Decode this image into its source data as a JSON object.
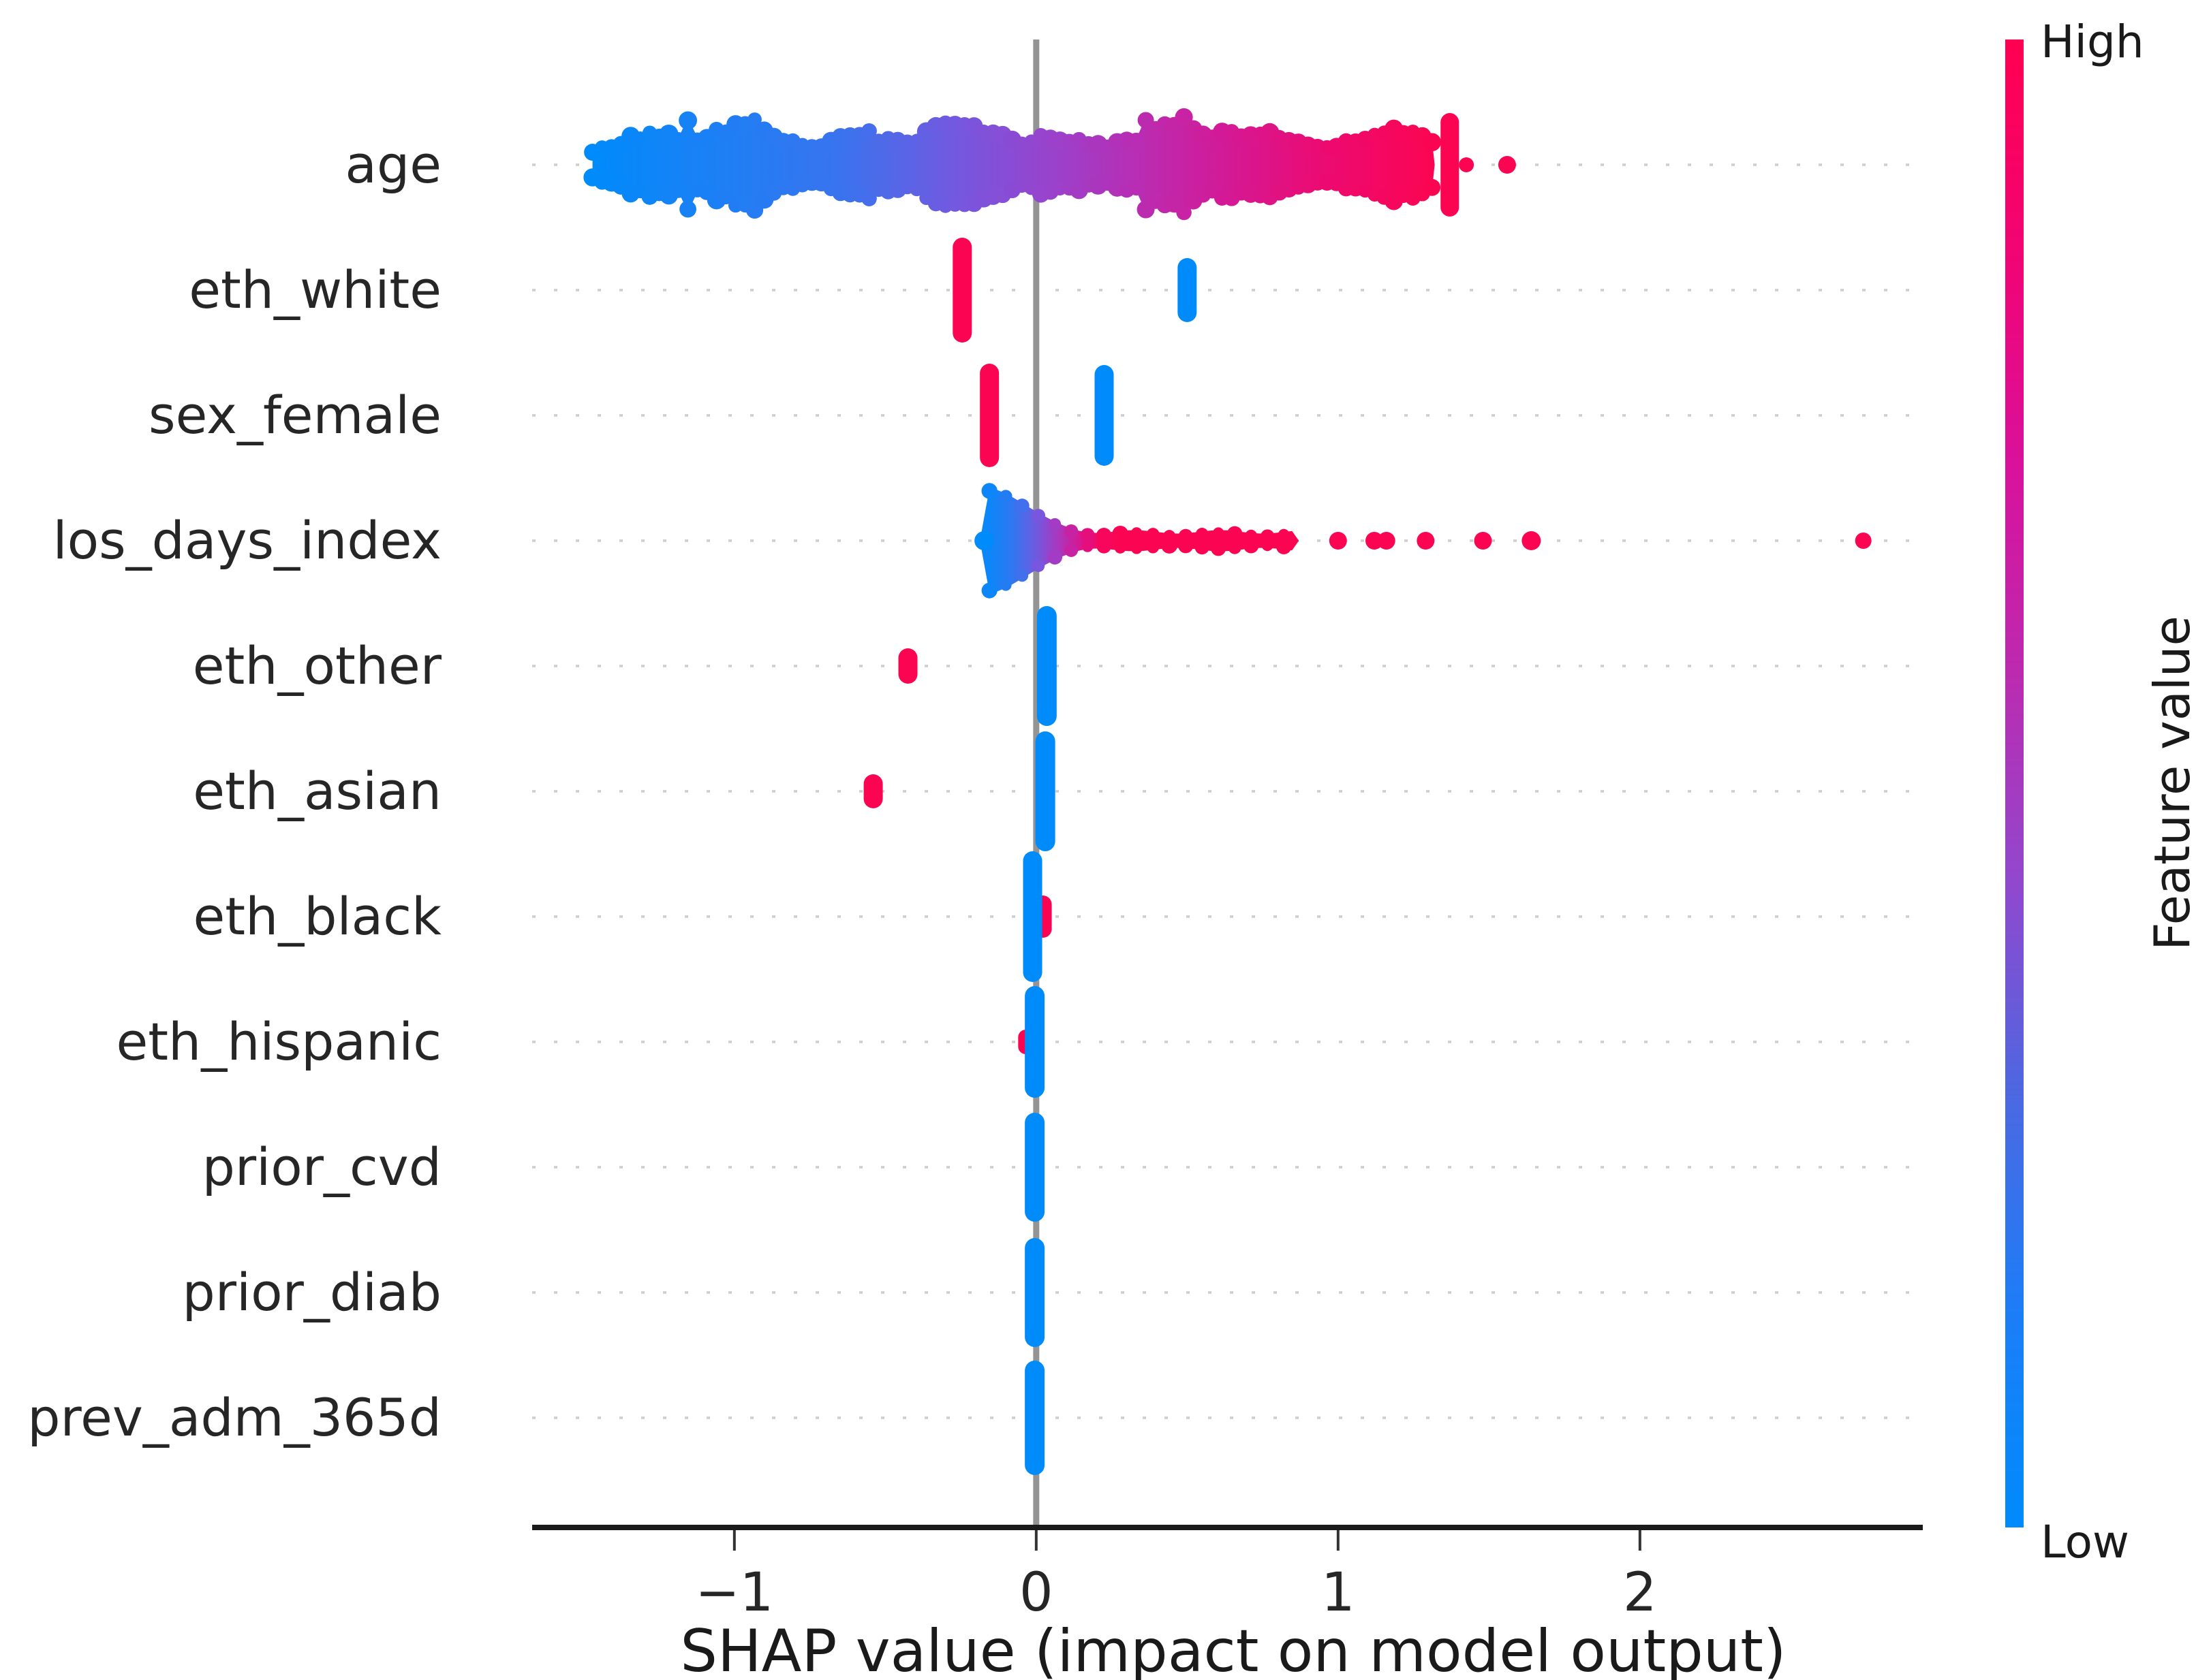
{
  "chart_data": {
    "type": "beeswarm",
    "title": "",
    "xlabel": "SHAP value (impact on model output)",
    "ylabel": "",
    "x_ticks": [
      -1,
      0,
      1,
      2
    ],
    "x_tick_labels": [
      "−1",
      "0",
      "1",
      "2"
    ],
    "x_range": [
      -1.67,
      2.91
    ],
    "zero_reference_line": 0,
    "grid": "dotted-per-row",
    "features": [
      "age",
      "eth_white",
      "sex_female",
      "los_days_index",
      "eth_other",
      "eth_asian",
      "eth_black",
      "eth_hispanic",
      "prior_cvd",
      "prior_diab",
      "prev_adm_365d"
    ],
    "colorbar": {
      "label": "Feature value",
      "high_label": "High",
      "low_label": "Low",
      "low_color": "#008bfb",
      "high_color": "#fb0552",
      "gradient_stops_bottom_to_top": [
        "#008bfb",
        "#1c7ef7",
        "#4a69e2",
        "#8f49cf",
        "#bb2bb0",
        "#d9119b",
        "#f10473",
        "#ff0051"
      ]
    },
    "colors": {
      "colormap_stops": [
        [
          0,
          "#008bfb"
        ],
        [
          0.3,
          "#3a73ee"
        ],
        [
          0.45,
          "#7b55dd"
        ],
        [
          0.55,
          "#9b41cb"
        ],
        [
          0.65,
          "#b92cb2"
        ],
        [
          0.75,
          "#d31a97"
        ],
        [
          0.87,
          "#ec0a71"
        ],
        [
          1,
          "#fb0552"
        ]
      ],
      "grid_color": "#cccccc",
      "zero_line_color": "#949494",
      "axis_color": "#1a1a1a",
      "text_color": "#262626"
    },
    "rows": [
      {
        "feature": "age",
        "elements": [
          {
            "kind": "band",
            "x0": -1.47,
            "x1": 1.32,
            "base_half": 45,
            "note": "dense swarm, color = feature value low(blue,left) to high(red,right)"
          },
          {
            "kind": "pill",
            "x": 1.37,
            "half_h": 76,
            "w": 27,
            "t": 1
          },
          {
            "kind": "dot",
            "x": 1.425,
            "r": 11,
            "t": 1
          },
          {
            "kind": "dot",
            "x": 1.56,
            "r": 13,
            "t": 1
          }
        ]
      },
      {
        "feature": "eth_white",
        "elements": [
          {
            "kind": "pill",
            "x": -0.245,
            "half_h": 77,
            "w": 28,
            "t": 1
          },
          {
            "kind": "pill",
            "x": 0.5,
            "half_h": 47,
            "w": 28,
            "t": 0
          }
        ]
      },
      {
        "feature": "sex_female",
        "elements": [
          {
            "kind": "pill",
            "x": -0.155,
            "half_h": 76,
            "w": 28,
            "t": 1
          },
          {
            "kind": "pill",
            "x": 0.225,
            "half_h": 74,
            "w": 28,
            "t": 0
          }
        ]
      },
      {
        "feature": "los_days_index",
        "elements": [
          {
            "kind": "funnel",
            "x0": -0.155,
            "x1": 0.87,
            "max_half": 78,
            "tail_half": 13
          },
          {
            "kind": "dot",
            "x": 1.0,
            "r": 13,
            "t": 1
          },
          {
            "kind": "dot",
            "x": 1.12,
            "r": 13,
            "t": 1
          },
          {
            "kind": "dot",
            "x": 1.16,
            "r": 13,
            "t": 1
          },
          {
            "kind": "dot",
            "x": 1.29,
            "r": 13,
            "t": 1
          },
          {
            "kind": "dot",
            "x": 1.48,
            "r": 13,
            "t": 1
          },
          {
            "kind": "dot",
            "x": 1.64,
            "r": 14,
            "t": 1
          },
          {
            "kind": "dot",
            "x": 2.74,
            "r": 12,
            "t": 1
          }
        ]
      },
      {
        "feature": "eth_other",
        "elements": [
          {
            "kind": "pill",
            "x": -0.425,
            "half_h": 26,
            "w": 28,
            "t": 1
          },
          {
            "kind": "pill",
            "x": 0.035,
            "half_h": 88,
            "w": 29,
            "t": 0
          }
        ]
      },
      {
        "feature": "eth_asian",
        "elements": [
          {
            "kind": "pill",
            "x": -0.54,
            "half_h": 25,
            "w": 28,
            "t": 1
          },
          {
            "kind": "pill",
            "x": 0.03,
            "half_h": 88,
            "w": 29,
            "t": 0
          }
        ]
      },
      {
        "feature": "eth_black",
        "elements": [
          {
            "kind": "pill",
            "x": 0.022,
            "half_h": 31,
            "w": 26,
            "t": 1
          },
          {
            "kind": "pill",
            "x": -0.012,
            "half_h": 96,
            "w": 28,
            "t": 0
          }
        ]
      },
      {
        "feature": "eth_hispanic",
        "elements": [
          {
            "kind": "pill",
            "x": -0.035,
            "half_h": 18,
            "w": 22,
            "t": 1
          },
          {
            "kind": "pill",
            "x": -0.005,
            "half_h": 82,
            "w": 29,
            "t": 0
          }
        ]
      },
      {
        "feature": "prior_cvd",
        "elements": [
          {
            "kind": "pill",
            "x": -0.005,
            "half_h": 80,
            "w": 29,
            "t": 0
          }
        ]
      },
      {
        "feature": "prior_diab",
        "elements": [
          {
            "kind": "pill",
            "x": -0.005,
            "half_h": 80,
            "w": 29,
            "t": 0
          }
        ]
      },
      {
        "feature": "prev_adm_365d",
        "elements": [
          {
            "kind": "pill",
            "x": -0.005,
            "half_h": 84,
            "w": 29,
            "t": 0
          }
        ]
      }
    ]
  }
}
